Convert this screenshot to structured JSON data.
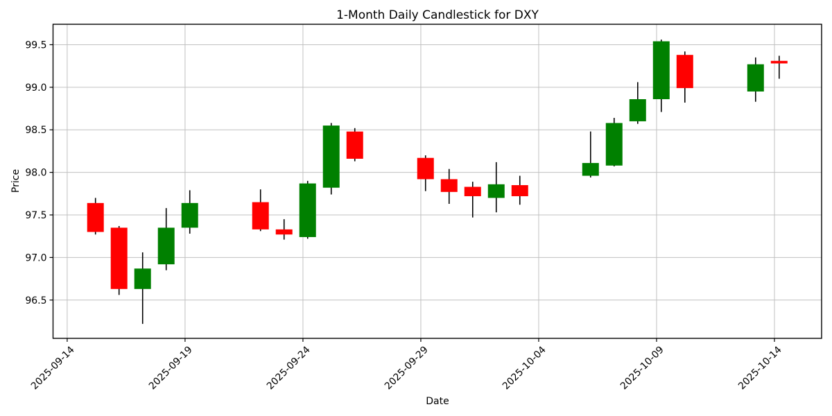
{
  "chart_data": {
    "type": "candlestick",
    "title": "1-Month Daily Candlestick for DXY",
    "xlabel": "Date",
    "ylabel": "Price",
    "grid": true,
    "legend": "none",
    "x_tick_labels": [
      "2025-09-14",
      "2025-09-19",
      "2025-09-24",
      "2025-09-29",
      "2025-10-04",
      "2025-10-09",
      "2025-10-14"
    ],
    "y_ticks": [
      96.5,
      97.0,
      97.5,
      98.0,
      98.5,
      99.0,
      99.5
    ],
    "ylim": [
      96.05,
      99.74
    ],
    "xlim_days": [
      -0.6,
      32.0
    ],
    "colors": {
      "up": "#008000",
      "down": "#ff0000",
      "wick": "#000000",
      "grid": "#c0c0c0",
      "axes": "#000000",
      "background": "#ffffff"
    },
    "candles": [
      {
        "date": "2025-09-15",
        "open": 97.64,
        "high": 97.7,
        "low": 97.27,
        "close": 97.3
      },
      {
        "date": "2025-09-16",
        "open": 97.35,
        "high": 97.37,
        "low": 96.56,
        "close": 96.63
      },
      {
        "date": "2025-09-17",
        "open": 96.63,
        "high": 97.06,
        "low": 96.22,
        "close": 96.87
      },
      {
        "date": "2025-09-18",
        "open": 96.92,
        "high": 97.58,
        "low": 96.85,
        "close": 97.35
      },
      {
        "date": "2025-09-19",
        "open": 97.35,
        "high": 97.79,
        "low": 97.28,
        "close": 97.64
      },
      {
        "date": "2025-09-22",
        "open": 97.65,
        "high": 97.8,
        "low": 97.31,
        "close": 97.33
      },
      {
        "date": "2025-09-23",
        "open": 97.33,
        "high": 97.45,
        "low": 97.21,
        "close": 97.27
      },
      {
        "date": "2025-09-24",
        "open": 97.24,
        "high": 97.9,
        "low": 97.22,
        "close": 97.87
      },
      {
        "date": "2025-09-25",
        "open": 97.82,
        "high": 98.58,
        "low": 97.74,
        "close": 98.55
      },
      {
        "date": "2025-09-26",
        "open": 98.48,
        "high": 98.52,
        "low": 98.13,
        "close": 98.16
      },
      {
        "date": "2025-09-29",
        "open": 98.17,
        "high": 98.2,
        "low": 97.78,
        "close": 97.92
      },
      {
        "date": "2025-09-30",
        "open": 97.92,
        "high": 98.04,
        "low": 97.63,
        "close": 97.77
      },
      {
        "date": "2025-10-01",
        "open": 97.83,
        "high": 97.89,
        "low": 97.47,
        "close": 97.72
      },
      {
        "date": "2025-10-02",
        "open": 97.7,
        "high": 98.12,
        "low": 97.53,
        "close": 97.86
      },
      {
        "date": "2025-10-03",
        "open": 97.85,
        "high": 97.96,
        "low": 97.62,
        "close": 97.72
      },
      {
        "date": "2025-10-06",
        "open": 97.96,
        "high": 98.48,
        "low": 97.94,
        "close": 98.11
      },
      {
        "date": "2025-10-07",
        "open": 98.08,
        "high": 98.64,
        "low": 98.07,
        "close": 98.58
      },
      {
        "date": "2025-10-08",
        "open": 98.6,
        "high": 99.06,
        "low": 98.57,
        "close": 98.86
      },
      {
        "date": "2025-10-09",
        "open": 98.86,
        "high": 99.56,
        "low": 98.71,
        "close": 99.54
      },
      {
        "date": "2025-10-10",
        "open": 99.38,
        "high": 99.42,
        "low": 98.82,
        "close": 98.99
      },
      {
        "date": "2025-10-13",
        "open": 98.95,
        "high": 99.35,
        "low": 98.83,
        "close": 99.27
      },
      {
        "date": "2025-10-14",
        "open": 99.31,
        "high": 99.37,
        "low": 99.1,
        "close": 99.28
      }
    ]
  }
}
